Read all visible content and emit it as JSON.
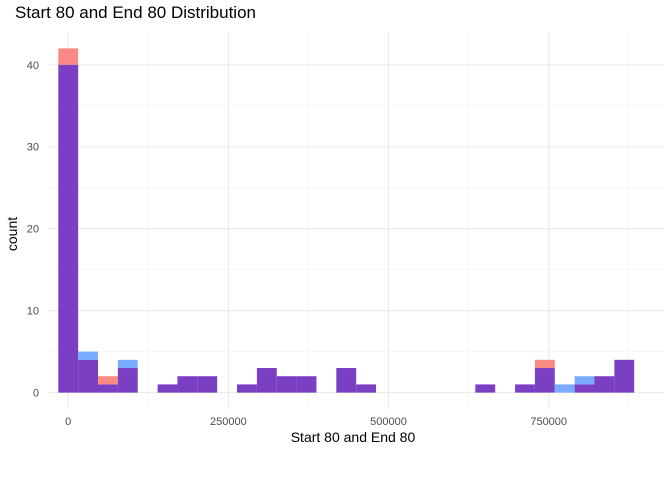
{
  "chart_data": {
    "type": "bar",
    "title": "Start 80 and End 80 Distribution",
    "xlabel": "Start 80 and End 80",
    "ylabel": "count",
    "bin_width": 31000,
    "x_start": 0,
    "xlim": [
      -30000,
      930000
    ],
    "ylim": [
      -2,
      44
    ],
    "x_ticks": [
      0,
      250000,
      500000,
      750000
    ],
    "x_tick_labels": [
      "0",
      "250000",
      "500000",
      "750000"
    ],
    "y_ticks": [
      0,
      10,
      20,
      30,
      40
    ],
    "y_tick_labels": [
      "0",
      "10",
      "20",
      "30",
      "40"
    ],
    "grid": true,
    "series": [
      {
        "color": "#F8766D",
        "values": [
          42,
          4,
          2,
          3,
          0,
          1,
          2,
          2,
          0,
          1,
          3,
          2,
          2,
          0,
          3,
          1,
          0,
          0,
          0,
          0,
          0,
          1,
          0,
          1,
          4,
          0,
          1,
          2,
          4
        ]
      },
      {
        "color": "#619CFF",
        "values": [
          40,
          5,
          1,
          4,
          0,
          1,
          2,
          2,
          0,
          1,
          3,
          2,
          2,
          0,
          3,
          1,
          0,
          0,
          0,
          0,
          0,
          1,
          0,
          1,
          3,
          1,
          2,
          2,
          4
        ]
      }
    ],
    "overlap_color": "#7B3FC4"
  }
}
